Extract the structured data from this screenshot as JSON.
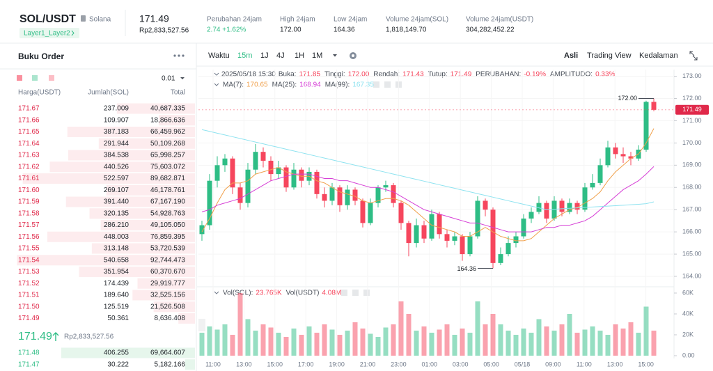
{
  "header": {
    "symbol": "SOL/USDT",
    "name": "Solana",
    "tag": "Layer1_Layer2",
    "price": "171.49",
    "price_idr": "Rp2,833,527.56",
    "stats": [
      {
        "label": "Perubahan 24jam",
        "value": "2.74 +1.62%"
      },
      {
        "label": "High 24jam",
        "value": "172.00"
      },
      {
        "label": "Low 24jam",
        "value": "164.36"
      },
      {
        "label": "Volume 24jam(SOL)",
        "value": "1,818,149.70"
      },
      {
        "label": "Volume 24jam(USDT)",
        "value": "304,282,452.22"
      }
    ]
  },
  "order_book": {
    "title": "Buku Order",
    "step": "0.01",
    "columns": [
      "Harga(USDT)",
      "Jumlah(SOL)",
      "Total"
    ],
    "asks": [
      [
        "171.67",
        "237.009",
        "40,687.335"
      ],
      [
        "171.66",
        "109.907",
        "18,866.636"
      ],
      [
        "171.65",
        "387.183",
        "66,459.962"
      ],
      [
        "171.64",
        "291.944",
        "50,109.268"
      ],
      [
        "171.63",
        "384.538",
        "65,998.257"
      ],
      [
        "171.62",
        "440.526",
        "75,603.072"
      ],
      [
        "171.61",
        "522.597",
        "89,682.871"
      ],
      [
        "171.60",
        "269.107",
        "46,178.761"
      ],
      [
        "171.59",
        "391.440",
        "67,167.190"
      ],
      [
        "171.58",
        "320.135",
        "54,928.763"
      ],
      [
        "171.57",
        "286.210",
        "49,105.050"
      ],
      [
        "171.56",
        "448.003",
        "76,859.395"
      ],
      [
        "171.55",
        "313.148",
        "53,720.539"
      ],
      [
        "171.54",
        "540.658",
        "92,744.473"
      ],
      [
        "171.53",
        "351.954",
        "60,370.670"
      ],
      [
        "171.52",
        "174.439",
        "29,919.777"
      ],
      [
        "171.51",
        "189.640",
        "32,525.156"
      ],
      [
        "171.50",
        "125.519",
        "21,526.508"
      ],
      [
        "171.49",
        "50.361",
        "8,636.408"
      ]
    ],
    "last_price": "171.49",
    "last_price_idr": "Rp2,833,527.56",
    "bids": [
      [
        "171.48",
        "406.255",
        "69,664.607"
      ],
      [
        "171.47",
        "30.222",
        "5,182.166"
      ]
    ]
  },
  "toolbar": {
    "time_label": "Waktu",
    "intervals": [
      "15m",
      "1J",
      "4J",
      "1H",
      "1M"
    ],
    "active_interval": 0,
    "views": [
      "Asli",
      "Trading View",
      "Kedalaman"
    ],
    "active_view": 0
  },
  "chart_data": {
    "type": "candlestick",
    "info": {
      "date": "2025/05/18 15:30",
      "items": [
        {
          "label": "Buka:",
          "value": "171.85"
        },
        {
          "label": "Tinggi:",
          "value": "172.00"
        },
        {
          "label": "Rendah:",
          "value": "171.43"
        },
        {
          "label": "Tutup:",
          "value": "171.49"
        },
        {
          "label": "PERUBAHAN:",
          "value": "-0.19%"
        },
        {
          "label": "AMPLITUDO:",
          "value": "0.33%"
        }
      ]
    },
    "xtick_labels": [
      "11:00",
      "13:00",
      "15:00",
      "17:00",
      "19:00",
      "21:00",
      "23:00",
      "01:00",
      "03:00",
      "05:00",
      "05/18",
      "09:00",
      "11:00",
      "13:00",
      "15:00"
    ],
    "up_color": "#2ebd85",
    "down_color": "#f6465d",
    "open": [
      165.9,
      166.3,
      168.3,
      169.0,
      169.3,
      168.0,
      167.3,
      168.8,
      169.6,
      169.2,
      168.6,
      168.9,
      168.0,
      168.8,
      168.3,
      168.7,
      167.7,
      167.4,
      168.0,
      167.2,
      167.9,
      167.4,
      166.4,
      167.3,
      168.0,
      168.1,
      167.3,
      166.4,
      165.5,
      166.3,
      165.7,
      166.8,
      165.9,
      165.6,
      165.8,
      165.0,
      165.8,
      167.4,
      167.0,
      164.6,
      165.0,
      165.5,
      165.8,
      166.6,
      166.9,
      167.3,
      166.6,
      167.4,
      166.9,
      167.3,
      167.0,
      168.0,
      168.2,
      169.0,
      169.8,
      169.5,
      169.4,
      169.3,
      169.7,
      171.85
    ],
    "high": [
      166.5,
      168.6,
      169.4,
      169.5,
      169.4,
      168.2,
      169.1,
      169.95,
      169.8,
      169.4,
      169.2,
      169.0,
      169.1,
      168.9,
      168.9,
      168.8,
      168.0,
      168.2,
      168.1,
      168.1,
      168.0,
      167.5,
      167.5,
      168.1,
      168.3,
      168.2,
      167.4,
      166.5,
      166.6,
      166.5,
      167.0,
      166.9,
      166.1,
      166.0,
      165.9,
      166.0,
      167.6,
      167.5,
      167.1,
      165.3,
      165.8,
      166.0,
      166.8,
      167.1,
      167.6,
      167.4,
      167.6,
      167.5,
      167.5,
      167.4,
      168.2,
      168.6,
      169.3,
      170.1,
      170.0,
      169.8,
      169.6,
      169.9,
      171.9,
      172.0
    ],
    "low": [
      165.6,
      166.1,
      168.0,
      168.7,
      167.7,
      167.0,
      167.1,
      168.6,
      168.9,
      168.3,
      168.4,
      167.8,
      167.9,
      168.0,
      168.1,
      167.5,
      167.1,
      167.2,
      166.9,
      167.0,
      167.2,
      166.2,
      166.3,
      167.1,
      167.8,
      167.1,
      166.1,
      164.9,
      165.3,
      165.5,
      165.6,
      165.7,
      165.3,
      165.4,
      164.7,
      164.9,
      165.7,
      166.7,
      164.36,
      164.5,
      164.9,
      165.3,
      165.7,
      166.4,
      166.8,
      166.4,
      166.5,
      166.7,
      166.8,
      166.8,
      166.9,
      167.9,
      168.1,
      168.9,
      169.3,
      169.1,
      169.0,
      169.2,
      169.6,
      171.43
    ],
    "close": [
      166.3,
      168.3,
      169.0,
      169.3,
      168.0,
      167.3,
      168.8,
      169.6,
      169.2,
      168.6,
      168.9,
      168.0,
      168.8,
      168.3,
      168.7,
      167.7,
      167.4,
      168.0,
      167.2,
      167.9,
      167.4,
      166.4,
      167.3,
      168.0,
      168.1,
      167.3,
      166.4,
      165.5,
      166.3,
      165.7,
      166.8,
      165.9,
      165.6,
      165.8,
      165.0,
      165.8,
      167.4,
      167.0,
      164.6,
      165.0,
      165.5,
      165.8,
      166.6,
      166.9,
      167.3,
      166.6,
      167.4,
      166.9,
      167.3,
      167.0,
      168.0,
      168.2,
      169.0,
      169.8,
      169.5,
      169.4,
      169.3,
      169.7,
      171.85,
      171.49
    ],
    "volume": [
      22000,
      28000,
      25000,
      30000,
      20000,
      60000,
      35000,
      24000,
      30000,
      27000,
      22000,
      18000,
      26000,
      20000,
      28000,
      22000,
      30000,
      25000,
      20000,
      24000,
      32000,
      26000,
      21000,
      18000,
      27000,
      30000,
      52000,
      40000,
      24000,
      28000,
      22000,
      25000,
      30000,
      20000,
      26000,
      22000,
      52000,
      30000,
      40000,
      30000,
      24000,
      20000,
      26000,
      22000,
      35000,
      28000,
      24000,
      30000,
      40000,
      22000,
      25000,
      28000,
      24000,
      20000,
      30000,
      26000,
      32000,
      22000,
      47000,
      24000
    ],
    "ma": [
      {
        "name": "MA(7):",
        "color": "#f0a04b",
        "values": [
          166.0,
          166.6,
          167.3,
          167.9,
          168.2,
          168.2,
          168.3,
          168.6,
          168.7,
          168.8,
          168.9,
          168.7,
          168.6,
          168.5,
          168.5,
          168.3,
          168.2,
          168.0,
          167.8,
          167.7,
          167.6,
          167.4,
          167.3,
          167.4,
          167.5,
          167.5,
          167.4,
          167.2,
          166.9,
          166.6,
          166.3,
          166.2,
          166.1,
          166.0,
          165.8,
          165.8,
          166.0,
          166.2,
          166.0,
          165.8,
          165.7,
          165.6,
          165.6,
          165.7,
          166.0,
          166.3,
          166.6,
          166.8,
          167.0,
          167.1,
          167.3,
          167.5,
          167.8,
          168.3,
          168.7,
          169.0,
          169.3,
          169.5,
          170.0,
          170.65
        ]
      },
      {
        "name": "MA(25):",
        "color": "#d63fd6",
        "values": [
          166.9,
          167.0,
          167.2,
          167.3,
          167.4,
          167.5,
          167.7,
          167.9,
          168.1,
          168.3,
          168.4,
          168.5,
          168.6,
          168.6,
          168.6,
          168.5,
          168.4,
          168.4,
          168.3,
          168.3,
          168.2,
          168.1,
          168.0,
          168.0,
          167.9,
          167.8,
          167.6,
          167.4,
          167.2,
          167.0,
          166.9,
          166.8,
          166.7,
          166.6,
          166.5,
          166.4,
          166.4,
          166.3,
          166.2,
          166.1,
          166.0,
          166.0,
          166.0,
          166.0,
          166.1,
          166.2,
          166.2,
          166.3,
          166.3,
          166.4,
          166.5,
          166.7,
          167.0,
          167.3,
          167.6,
          167.9,
          168.1,
          168.3,
          168.6,
          168.94
        ]
      },
      {
        "name": "MA(99):",
        "color": "#8fe3f0",
        "values": [
          170.6,
          170.52,
          170.44,
          170.36,
          170.28,
          170.2,
          170.12,
          170.04,
          169.96,
          169.88,
          169.8,
          169.72,
          169.64,
          169.56,
          169.48,
          169.4,
          169.32,
          169.24,
          169.16,
          169.08,
          169.0,
          168.92,
          168.84,
          168.76,
          168.68,
          168.6,
          168.52,
          168.44,
          168.36,
          168.28,
          168.2,
          168.12,
          168.04,
          167.96,
          167.88,
          167.8,
          167.72,
          167.64,
          167.56,
          167.48,
          167.4,
          167.32,
          167.24,
          167.16,
          167.08,
          167.0,
          167.02,
          167.04,
          167.06,
          167.08,
          167.1,
          167.12,
          167.14,
          167.16,
          167.18,
          167.2,
          167.22,
          167.24,
          167.27,
          167.35
        ]
      }
    ],
    "ylim": [
      163.75,
      173.3
    ],
    "yticks": [
      {
        "value": 173,
        "label": "173.00"
      },
      {
        "value": 172,
        "label": "172.00"
      },
      {
        "value": 171,
        "label": "171.00"
      },
      {
        "value": 170,
        "label": "170.00"
      },
      {
        "value": 169,
        "label": "169.00"
      },
      {
        "value": 168,
        "label": "168.00"
      },
      {
        "value": 167,
        "label": "167.00"
      },
      {
        "value": 166,
        "label": "166.00"
      },
      {
        "value": 165,
        "label": "165.00"
      },
      {
        "value": 164,
        "label": "164.00"
      }
    ],
    "annotations": [
      {
        "value": 172,
        "label": "172.00"
      },
      {
        "value": 164.36,
        "label": "164.36"
      }
    ],
    "volume_legend": [
      {
        "label": "Vol(SOL):",
        "value": "23.765K"
      },
      {
        "label": "Vol(USDT)",
        "value": "4.08M"
      }
    ],
    "volume_ylim": [
      0,
      64000
    ],
    "volume_yticks": [
      {
        "value": 60000,
        "label": "60K"
      },
      {
        "value": 40000,
        "label": "40K"
      },
      {
        "value": 20000,
        "label": "20K"
      },
      {
        "value": 0,
        "label": "0.00"
      }
    ],
    "grid": true
  }
}
